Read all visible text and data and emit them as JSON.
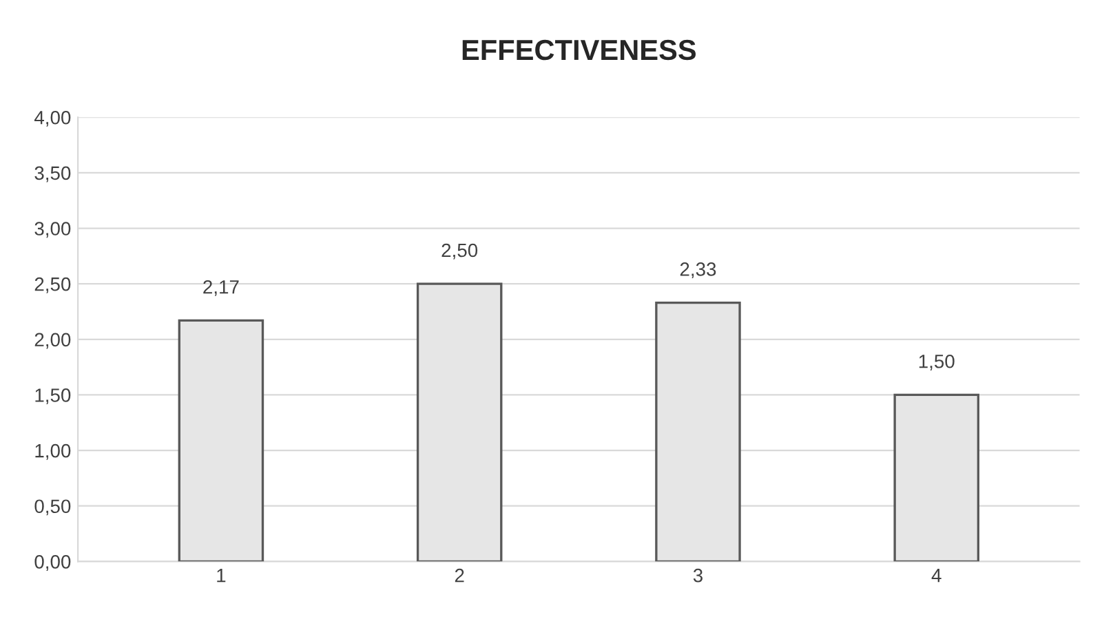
{
  "chart_data": {
    "type": "bar",
    "title": "EFFECTIVENESS",
    "categories": [
      "1",
      "2",
      "3",
      "4"
    ],
    "values": [
      2.17,
      2.5,
      2.33,
      1.5
    ],
    "value_labels": [
      "2,17",
      "2,50",
      "2,33",
      "1,50"
    ],
    "color": "#e6e6e6",
    "ylim": [
      0,
      4
    ],
    "yticks": [
      {
        "value": 0,
        "label": "0,00"
      },
      {
        "value": 0.5,
        "label": "0,50"
      },
      {
        "value": 1,
        "label": "1,00"
      },
      {
        "value": 1.5,
        "label": "1,50"
      },
      {
        "value": 2,
        "label": "2,00"
      },
      {
        "value": 2.5,
        "label": "2,50"
      },
      {
        "value": 3,
        "label": "3,00"
      },
      {
        "value": 3.5,
        "label": "3,50"
      },
      {
        "value": 4,
        "label": "4,00"
      }
    ],
    "grid": "y"
  }
}
